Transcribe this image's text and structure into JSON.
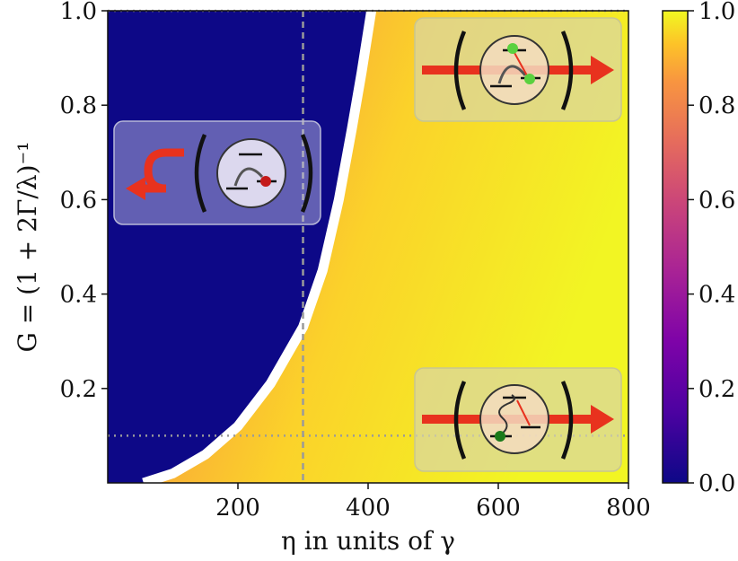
{
  "chart_data": {
    "type": "heatmap",
    "title": "",
    "xlabel": "η in units of γ",
    "ylabel": "G = (1 + 2Γ/λ)⁻¹",
    "xlim": [
      0,
      800
    ],
    "ylim": [
      0,
      1.0
    ],
    "x_ticks": [
      "200",
      "400",
      "600",
      "800"
    ],
    "y_ticks": [
      "0.2",
      "0.4",
      "0.6",
      "0.8",
      "1.0"
    ],
    "colorbar": {
      "range": [
        0.0,
        1.0
      ],
      "ticks": [
        "0.0",
        "0.2",
        "0.4",
        "0.6",
        "0.8",
        "1.0"
      ],
      "colormap": "plasma"
    },
    "boundary": {
      "description_free": true,
      "points": [
        [
          55,
          0.0
        ],
        [
          100,
          0.02
        ],
        [
          150,
          0.06
        ],
        [
          200,
          0.12
        ],
        [
          250,
          0.21
        ],
        [
          300,
          0.33
        ],
        [
          330,
          0.45
        ],
        [
          355,
          0.6
        ],
        [
          375,
          0.75
        ],
        [
          390,
          0.87
        ],
        [
          405,
          1.0
        ]
      ]
    },
    "reference_lines": {
      "vertical_x": 300,
      "horizontal_y": [
        0.1,
        1.0
      ],
      "style": "dotted-gray"
    },
    "regions": {
      "left_value": 0.0,
      "right_near_boundary_value": 0.65,
      "right_far_value": 1.0
    },
    "colors": {
      "zero": "#0d0887",
      "mid": "#cc4778",
      "high": "#f89540",
      "max": "#f0f921",
      "arrow": "#e8321e",
      "green_dot": "#5ad13f",
      "dark_green_dot": "#1a7a1a",
      "red_dot": "#c41a1a"
    }
  }
}
